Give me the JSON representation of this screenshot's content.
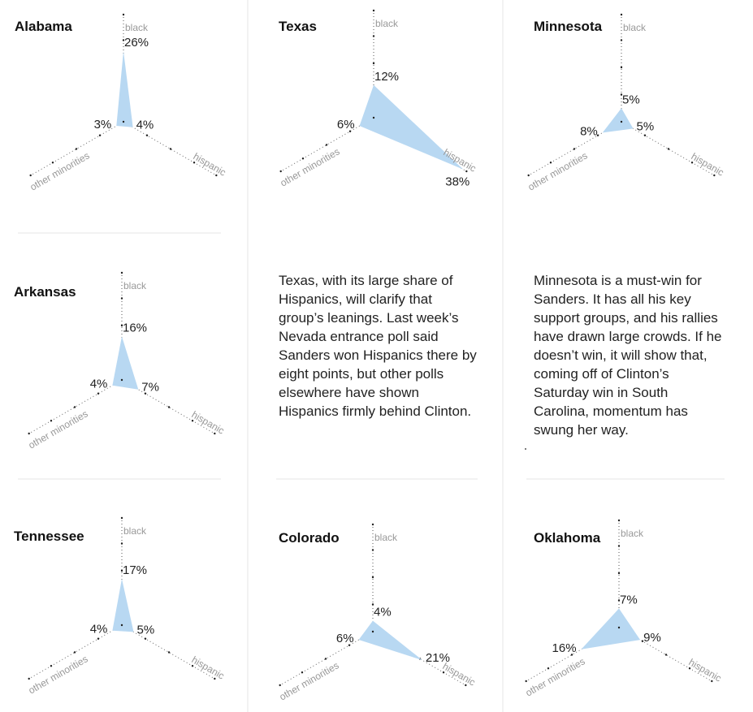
{
  "text": {
    "texas_note": "Texas, with its large share of Hispanics, will clarify that group’s leanings. Last week’s Nevada entrance poll said Sanders won Hispanics there by eight points, but other polls elsewhere have shown Hispanics firmly behind Clinton.",
    "minnesota_note": "Minnesota is a must-win for Sanders. It has all his key support groups, and his rallies have drawn large crowds. If he doesn’t win, it will show that, coming off of Clinton’s Saturday win in South Carolina, momentum has swung her way."
  },
  "colors": {
    "fill": "#b8d8f2",
    "axis": "#555555",
    "axis_label": "#999999",
    "divider": "#e6e6e6"
  },
  "chart_data": [
    {
      "type": "radar",
      "title": "Alabama",
      "axes": [
        "black",
        "hispanic",
        "other minorities"
      ],
      "values": [
        26,
        4,
        3
      ],
      "labels": [
        "26%",
        "4%",
        "3%"
      ]
    },
    {
      "type": "radar",
      "title": "Texas",
      "axes": [
        "black",
        "hispanic",
        "other minorities"
      ],
      "values": [
        12,
        38,
        6
      ],
      "labels": [
        "12%",
        "38%",
        "6%"
      ]
    },
    {
      "type": "radar",
      "title": "Minnesota",
      "axes": [
        "black",
        "hispanic",
        "other minorities"
      ],
      "values": [
        5,
        5,
        8
      ],
      "labels": [
        "5%",
        "5%",
        "8%"
      ]
    },
    {
      "type": "radar",
      "title": "Arkansas",
      "axes": [
        "black",
        "hispanic",
        "other minorities"
      ],
      "values": [
        16,
        7,
        4
      ],
      "labels": [
        "16%",
        "7%",
        "4%"
      ]
    },
    {
      "type": "radar",
      "title": "Tennessee",
      "axes": [
        "black",
        "hispanic",
        "other minorities"
      ],
      "values": [
        17,
        5,
        4
      ],
      "labels": [
        "17%",
        "5%",
        "4%"
      ]
    },
    {
      "type": "radar",
      "title": "Colorado",
      "axes": [
        "black",
        "hispanic",
        "other minorities"
      ],
      "values": [
        4,
        21,
        6
      ],
      "labels": [
        "4%",
        "21%",
        "6%"
      ]
    },
    {
      "type": "radar",
      "title": "Oklahoma",
      "axes": [
        "black",
        "hispanic",
        "other minorities"
      ],
      "values": [
        7,
        9,
        16
      ],
      "labels": [
        "7%",
        "9%",
        "16%"
      ]
    }
  ]
}
